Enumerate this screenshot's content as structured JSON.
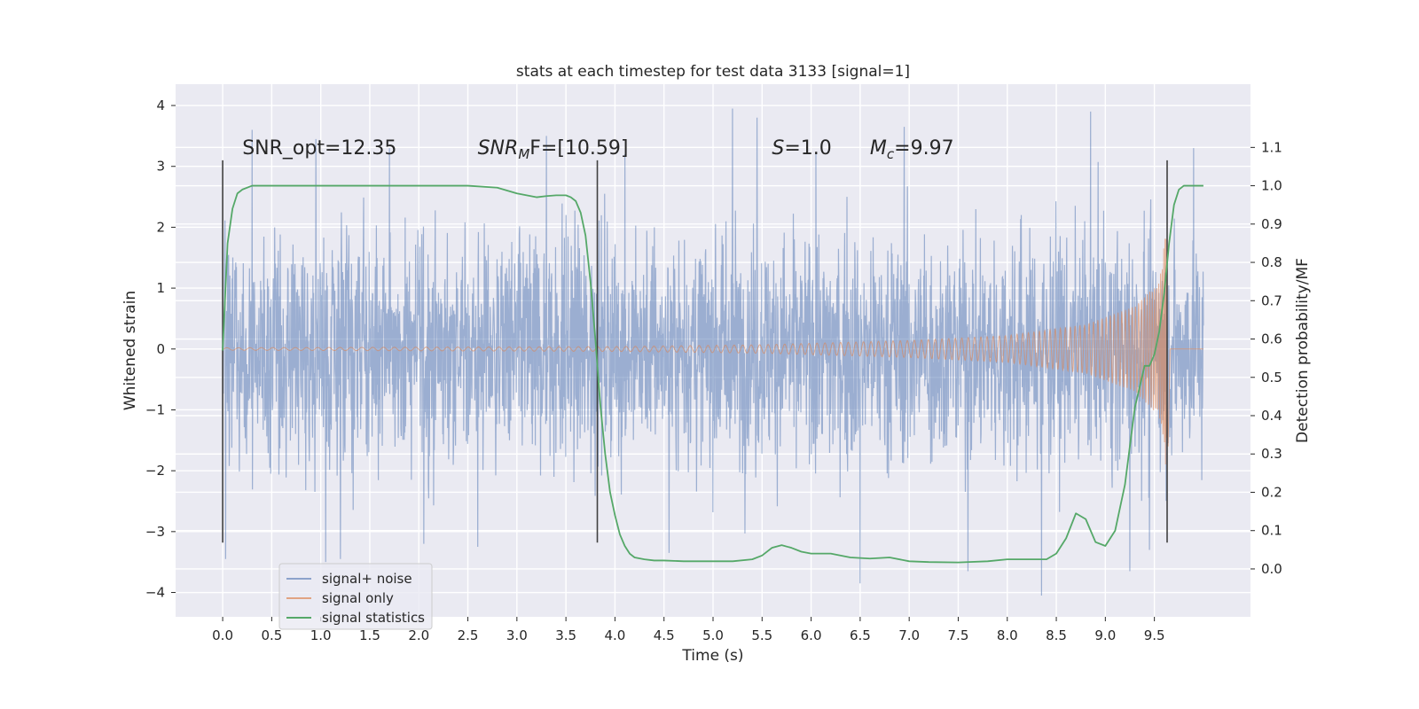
{
  "chart_data": {
    "type": "line",
    "title": "stats at each timestep for test data 3133 [signal=1]",
    "xlabel": "Time (s)",
    "ylabel": "Whitened strain",
    "y2label": "Detection probability/MF",
    "xlim": [
      -0.48,
      10.48
    ],
    "ylim": [
      -4.4,
      4.35
    ],
    "y2lim": [
      -0.125,
      1.265
    ],
    "x_ticks": [
      "0.0",
      "0.5",
      "1.0",
      "1.5",
      "2.0",
      "2.5",
      "3.0",
      "3.5",
      "4.0",
      "4.5",
      "5.0",
      "5.5",
      "6.0",
      "6.5",
      "7.0",
      "7.5",
      "8.0",
      "8.5",
      "9.0",
      "9.5"
    ],
    "x_tick_values": [
      0,
      0.5,
      1,
      1.5,
      2,
      2.5,
      3,
      3.5,
      4,
      4.5,
      5,
      5.5,
      6,
      6.5,
      7,
      7.5,
      8,
      8.5,
      9,
      9.5
    ],
    "y_ticks": [
      "−4",
      "−3",
      "−2",
      "−1",
      "0",
      "1",
      "2",
      "3",
      "4"
    ],
    "y_tick_values": [
      -4,
      -3,
      -2,
      -1,
      0,
      1,
      2,
      3,
      4
    ],
    "y2_ticks": [
      "0.0",
      "0.1",
      "0.2",
      "0.3",
      "0.4",
      "0.5",
      "0.6",
      "0.7",
      "0.8",
      "0.9",
      "1.0",
      "1.1"
    ],
    "y2_tick_values": [
      0,
      0.1,
      0.2,
      0.3,
      0.4,
      0.5,
      0.6,
      0.7,
      0.8,
      0.9,
      1.0,
      1.1
    ],
    "grid": true,
    "legend_position": "lower-left",
    "annotations": [
      {
        "text": "SNR_opt=12.35",
        "x": 0.2,
        "y": 3.2
      },
      {
        "text": "SNR",
        "sub": "M",
        "tail": "F=[10.59]",
        "italic": true,
        "x": 2.6,
        "y": 3.2
      },
      {
        "text": "S",
        "tail": "=1.0",
        "italic": true,
        "x": 5.6,
        "y": 3.2
      },
      {
        "text": "M",
        "sub": "c",
        "tail": "=9.97",
        "italic": true,
        "x": 6.6,
        "y": 3.2
      }
    ],
    "markers": [
      0.0,
      3.82,
      9.63
    ],
    "series": [
      {
        "name": "signal+ noise",
        "color": "#4c72b0",
        "opacity": 0.5,
        "t_start": 0.0,
        "t_end": 10.0,
        "envelope_upper": [
          2.3,
          2.4,
          2.3,
          2.5,
          2.4,
          2.3,
          2.4,
          2.5,
          2.4,
          2.3,
          2.4,
          2.5,
          2.4,
          2.5,
          2.4,
          2.3,
          2.5,
          2.4,
          2.4,
          2.5,
          2.3
        ],
        "envelope_lower": [
          -2.3,
          -2.4,
          -2.3,
          -2.5,
          -2.4,
          -2.3,
          -2.4,
          -2.5,
          -2.4,
          -2.3,
          -2.4,
          -2.5,
          -2.4,
          -2.5,
          -2.4,
          -2.3,
          -2.5,
          -2.4,
          -2.4,
          -2.5,
          -2.3
        ],
        "peaks": [
          {
            "x": 0.03,
            "y": -3.45
          },
          {
            "x": 0.3,
            "y": 3.6
          },
          {
            "x": 0.95,
            "y": 3.45
          },
          {
            "x": 1.05,
            "y": -3.5
          },
          {
            "x": 1.2,
            "y": -3.45
          },
          {
            "x": 1.7,
            "y": 3.3
          },
          {
            "x": 2.05,
            "y": -3.2
          },
          {
            "x": 2.6,
            "y": -3.25
          },
          {
            "x": 3.3,
            "y": 3.5
          },
          {
            "x": 4.1,
            "y": 3.2
          },
          {
            "x": 4.55,
            "y": -3.35
          },
          {
            "x": 5.2,
            "y": 3.95
          },
          {
            "x": 5.45,
            "y": 3.8
          },
          {
            "x": 6.05,
            "y": 3.2
          },
          {
            "x": 6.5,
            "y": -3.85
          },
          {
            "x": 6.95,
            "y": 3.65
          },
          {
            "x": 7.6,
            "y": -3.65
          },
          {
            "x": 8.35,
            "y": -4.05
          },
          {
            "x": 8.85,
            "y": 3.9
          },
          {
            "x": 9.25,
            "y": -3.65
          },
          {
            "x": 9.45,
            "y": -3.3
          },
          {
            "x": 9.9,
            "y": 3.3
          }
        ]
      },
      {
        "name": "signal only",
        "color": "#dd8452",
        "opacity": 0.6,
        "t_c": 9.63,
        "amplitude_at": [
          [
            0.0,
            0.02
          ],
          [
            4.0,
            0.04
          ],
          [
            5.5,
            0.07
          ],
          [
            7.0,
            0.14
          ],
          [
            8.0,
            0.22
          ],
          [
            8.8,
            0.4
          ],
          [
            9.3,
            0.7
          ],
          [
            9.55,
            1.1
          ],
          [
            9.63,
            2.1
          ]
        ]
      },
      {
        "name": "signal statistics",
        "color": "#55a868",
        "axis": "right",
        "x": [
          0.0,
          0.05,
          0.1,
          0.15,
          0.2,
          0.3,
          0.5,
          1.0,
          1.5,
          2.0,
          2.5,
          2.8,
          3.0,
          3.1,
          3.2,
          3.3,
          3.4,
          3.5,
          3.55,
          3.6,
          3.65,
          3.7,
          3.75,
          3.8,
          3.85,
          3.9,
          3.95,
          4.0,
          4.05,
          4.1,
          4.15,
          4.2,
          4.3,
          4.4,
          4.5,
          4.7,
          5.0,
          5.2,
          5.4,
          5.5,
          5.6,
          5.7,
          5.8,
          5.9,
          6.0,
          6.2,
          6.4,
          6.6,
          6.8,
          7.0,
          7.2,
          7.5,
          7.8,
          8.0,
          8.2,
          8.4,
          8.5,
          8.6,
          8.7,
          8.8,
          8.9,
          9.0,
          9.1,
          9.2,
          9.3,
          9.4,
          9.45,
          9.5,
          9.55,
          9.6,
          9.65,
          9.7,
          9.75,
          9.8,
          9.85,
          9.9,
          9.95,
          10.0
        ],
        "y": [
          0.57,
          0.85,
          0.94,
          0.98,
          0.99,
          1.0,
          1.0,
          1.0,
          1.0,
          1.0,
          1.0,
          0.995,
          0.98,
          0.975,
          0.97,
          0.973,
          0.975,
          0.975,
          0.97,
          0.96,
          0.93,
          0.87,
          0.75,
          0.6,
          0.43,
          0.3,
          0.2,
          0.14,
          0.09,
          0.06,
          0.04,
          0.03,
          0.025,
          0.022,
          0.022,
          0.02,
          0.02,
          0.02,
          0.025,
          0.035,
          0.055,
          0.062,
          0.055,
          0.045,
          0.04,
          0.04,
          0.03,
          0.027,
          0.03,
          0.02,
          0.018,
          0.017,
          0.02,
          0.025,
          0.025,
          0.025,
          0.04,
          0.08,
          0.145,
          0.13,
          0.07,
          0.06,
          0.1,
          0.22,
          0.42,
          0.53,
          0.53,
          0.56,
          0.62,
          0.72,
          0.85,
          0.95,
          0.99,
          1.0,
          1.0,
          1.0,
          1.0,
          1.0
        ]
      }
    ]
  }
}
